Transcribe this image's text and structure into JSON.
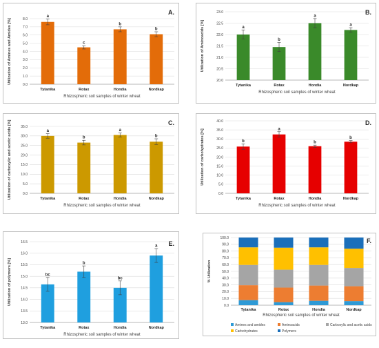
{
  "chart_data": [
    {
      "id": "A",
      "type": "bar",
      "panel_label": "A.",
      "categories": [
        "Tytanika",
        "Rotax",
        "Hondia",
        "Nordkap"
      ],
      "values": [
        7.6,
        4.5,
        6.7,
        6.1
      ],
      "errors": [
        0.35,
        0.2,
        0.3,
        0.3
      ],
      "letters": [
        "a",
        "c",
        "b",
        "b"
      ],
      "ylabel": "Utilization of Amines and Amides [%]",
      "xlabel": "Rhizospheric soil samples of winter wheat",
      "ylim": [
        0,
        8
      ],
      "yticks": [
        "0.0",
        "1.0",
        "2.0",
        "3.0",
        "4.0",
        "5.0",
        "6.0",
        "7.0",
        "8.0"
      ],
      "color": "#e36c09",
      "grid": true
    },
    {
      "id": "B",
      "type": "bar",
      "panel_label": "B.",
      "categories": [
        "Tytanika",
        "Rotax",
        "Hondia",
        "Nordkap"
      ],
      "values": [
        22.0,
        21.45,
        22.5,
        22.2
      ],
      "errors": [
        0.2,
        0.2,
        0.2,
        0.1
      ],
      "letters": [
        "a",
        "b",
        "a",
        "a"
      ],
      "ylabel": "Utilization of Aminoacids [%]",
      "xlabel": "Rhizospheric soil samples of winter wheat",
      "ylim": [
        20,
        23
      ],
      "yticks": [
        "20.0",
        "20.5",
        "21.0",
        "21.5",
        "22.0",
        "22.5",
        "23.0"
      ],
      "color": "#3a8a2a",
      "grid": true
    },
    {
      "id": "C",
      "type": "bar",
      "panel_label": "C.",
      "categories": [
        "Tytanika",
        "Rotax",
        "Hondia",
        "Nordkap"
      ],
      "values": [
        30.0,
        26.5,
        30.5,
        27.0
      ],
      "errors": [
        1.2,
        1.2,
        1.0,
        1.5
      ],
      "letters": [
        "a",
        "b",
        "a",
        "b"
      ],
      "ylabel": "Utilization of carboxylic and acetic acids [%]",
      "xlabel": "Rhizospheric soil samples of winter wheat",
      "ylim": [
        0,
        35
      ],
      "yticks": [
        "0.0",
        "5.0",
        "10.0",
        "15.0",
        "20.0",
        "25.0",
        "30.0",
        "35.0"
      ],
      "color": "#cc9900",
      "grid": true
    },
    {
      "id": "D",
      "type": "bar",
      "panel_label": "D.",
      "categories": [
        "Tytanika",
        "Rotax",
        "Hondia",
        "Nordkap"
      ],
      "values": [
        25.8,
        32.5,
        26.0,
        28.5
      ],
      "errors": [
        1.5,
        1.5,
        0.6,
        0.6
      ],
      "letters": [
        "b",
        "a",
        "b",
        "b"
      ],
      "ylabel": "Utilization of carbohydrates [%]",
      "xlabel": "Rhizospheric soil samples of winter wheat",
      "ylim": [
        0,
        40
      ],
      "yticks": [
        "0.0",
        "5.0",
        "10.0",
        "15.0",
        "20.0",
        "25.0",
        "30.0",
        "35.0",
        "40.0"
      ],
      "color": "#e60000",
      "grid": true
    },
    {
      "id": "E",
      "type": "bar",
      "panel_label": "E.",
      "categories": [
        "Tytanika",
        "Rotax",
        "Hondia",
        "Nordkap"
      ],
      "values": [
        14.65,
        15.2,
        14.5,
        15.9
      ],
      "errors": [
        0.3,
        0.25,
        0.3,
        0.3
      ],
      "letters": [
        "bc",
        "b",
        "bc",
        "a"
      ],
      "ylabel": "Utilization of polymers [%]",
      "xlabel": "Rhizospheric soil samples of winter wheat",
      "ylim": [
        13,
        16.5
      ],
      "yticks": [
        "13.0",
        "13.5",
        "14.0",
        "14.5",
        "15.0",
        "15.5",
        "16.0",
        "16.5"
      ],
      "color": "#1f9fdf",
      "grid": true
    },
    {
      "id": "F",
      "type": "bar",
      "stacked": true,
      "panel_label": "F.",
      "categories": [
        "Tytanika",
        "Rotax",
        "Hondia",
        "Nordkap"
      ],
      "series": [
        {
          "name": "Amines and amides",
          "color": "#2e9ad6",
          "values": [
            7.5,
            4.5,
            6.5,
            6.0
          ]
        },
        {
          "name": "Aminoacids",
          "color": "#ed7d31",
          "values": [
            22.0,
            21.5,
            22.5,
            22.0
          ]
        },
        {
          "name": "Carboxylic and acetic acids",
          "color": "#a5a5a5",
          "values": [
            30.0,
            26.5,
            30.5,
            27.0
          ]
        },
        {
          "name": "Carbohydrates",
          "color": "#ffc000",
          "values": [
            26.0,
            32.5,
            26.0,
            28.5
          ]
        },
        {
          "name": "Polymers",
          "color": "#1b6fba",
          "values": [
            14.5,
            15.0,
            14.5,
            16.5
          ]
        }
      ],
      "ylabel": "% Utilization",
      "xlabel": "Rhizospheric soil samples of winter wheat",
      "ylim": [
        0,
        100
      ],
      "yticks": [
        "0.0",
        "10.0",
        "20.0",
        "30.0",
        "40.0",
        "50.0",
        "60.0",
        "70.0",
        "80.0",
        "90.0",
        "100.0"
      ],
      "legend_position": "bottom",
      "grid": true
    }
  ]
}
